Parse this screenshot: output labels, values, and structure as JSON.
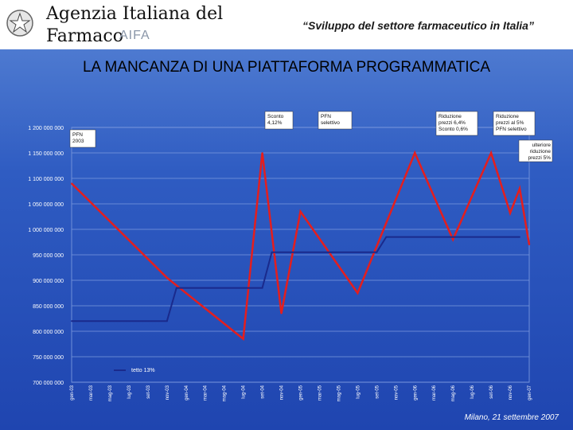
{
  "header": {
    "agency_name": "Agenzia Italiana del Farmaco",
    "logo_text": "AIFA",
    "subtitle": "“Sviluppo del settore farmaceutico in Italia”"
  },
  "title": "LA MANCANZA DI UNA PIATTAFORMA PROGRAMMATICA",
  "footer": "Milano, 21 settembre 2007",
  "colors": {
    "red_series": "#e41e1e",
    "blue_series": "#1a2a8c",
    "background": "#2f5cc2"
  },
  "chart_data": {
    "type": "line",
    "ylim": [
      700000000,
      1200000000
    ],
    "y_ticks": [
      "700 000 000",
      "750 000 000",
      "800 000 000",
      "850 000 000",
      "900 000 000",
      "950 000 000",
      "1 000 000 000",
      "1 050 000 000",
      "1 100 000 000",
      "1 150 000 000",
      "1 200 000 000"
    ],
    "y_tick_values": [
      700000000,
      750000000,
      800000000,
      850000000,
      900000000,
      950000000,
      1000000000,
      1050000000,
      1100000000,
      1150000000,
      1200000000
    ],
    "categories": [
      "gen-03",
      "mar-03",
      "mag-03",
      "lug-03",
      "set-03",
      "nov-03",
      "gen-04",
      "mar-04",
      "mag-04",
      "lug-04",
      "set-04",
      "nov-04",
      "gen-05",
      "mar-05",
      "mag-05",
      "lug-05",
      "set-05",
      "nov-05",
      "gen-06",
      "mar-06",
      "mag-06",
      "lug-06",
      "set-06",
      "nov-06",
      "gen-07"
    ],
    "series": [
      {
        "name": "",
        "color": "#e41e1e",
        "points": [
          {
            "x": "gen-03",
            "y": 1090000000
          },
          {
            "x": "nov-03",
            "y": 905000000
          },
          {
            "x": "lug-04",
            "y": 785000000
          },
          {
            "x": "set-04",
            "y": 1150000000
          },
          {
            "x": "nov-04",
            "y": 835000000
          },
          {
            "x": "gen-05",
            "y": 1035000000
          },
          {
            "x": "lug-05",
            "y": 875000000
          },
          {
            "x": "gen-06",
            "y": 1150000000
          },
          {
            "x": "mag-06",
            "y": 980000000
          },
          {
            "x": "set-06",
            "y": 1150000000
          },
          {
            "x": "nov-06",
            "y": 1032000000
          },
          {
            "x": "dic-06",
            "y": 1080000000
          },
          {
            "x": "gen-07",
            "y": 970000000
          }
        ]
      },
      {
        "name": "tetto 13%",
        "color": "#1a2a8c",
        "points": [
          {
            "x": "gen-03",
            "y": 820000000
          },
          {
            "x": "nov-03",
            "y": 820000000
          },
          {
            "x": "dic-03",
            "y": 885000000
          },
          {
            "x": "set-04",
            "y": 885000000
          },
          {
            "x": "ott-04",
            "y": 955000000
          },
          {
            "x": "set-05",
            "y": 955000000
          },
          {
            "x": "ott-05",
            "y": 985000000
          },
          {
            "x": "dic-06",
            "y": 985000000
          }
        ]
      }
    ],
    "annotations": [
      {
        "text": "Sconto\n4,12%"
      },
      {
        "text": "PFN\nselettivo"
      },
      {
        "text": "Riduzione\nprezzi 6,4%\nSconto 0,6%"
      },
      {
        "text": "Riduzione\nprezzi al 5%\nPFN selettivo"
      },
      {
        "text": "PFN\n2003"
      },
      {
        "text": "ulteriore\nriduzione\nprezzi 5%"
      }
    ],
    "legend_label": "tetto 13%"
  }
}
